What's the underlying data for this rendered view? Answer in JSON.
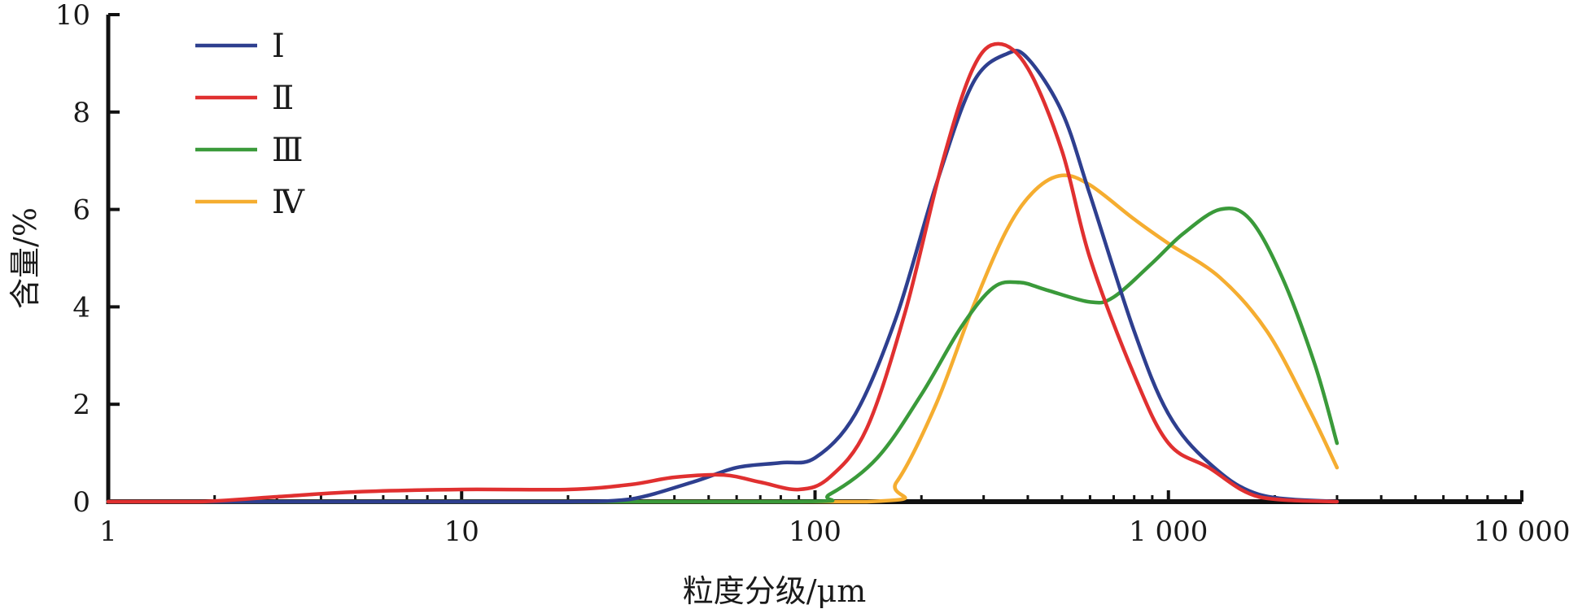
{
  "chart_data": {
    "type": "line",
    "xlabel": "粒度分级/μm",
    "ylabel": "含量/%",
    "x_scale": "log",
    "xlim": [
      1,
      10000
    ],
    "ylim": [
      0,
      10
    ],
    "x_ticks": [
      {
        "value": 1,
        "label": "1"
      },
      {
        "value": 10,
        "label": "10"
      },
      {
        "value": 100,
        "label": "100"
      },
      {
        "value": 1000,
        "label": "1 000"
      },
      {
        "value": 10000,
        "label": "10 000"
      }
    ],
    "y_ticks": [
      {
        "value": 0,
        "label": "0"
      },
      {
        "value": 2,
        "label": "2"
      },
      {
        "value": 4,
        "label": "4"
      },
      {
        "value": 6,
        "label": "6"
      },
      {
        "value": 8,
        "label": "8"
      },
      {
        "value": 10,
        "label": "10"
      }
    ],
    "legend_position": "top-left",
    "grid": false,
    "series": [
      {
        "name": "Ⅰ",
        "color": "#2e3f8f",
        "points": [
          [
            1,
            0
          ],
          [
            10,
            0
          ],
          [
            20,
            0
          ],
          [
            30,
            0.05
          ],
          [
            45,
            0.4
          ],
          [
            60,
            0.7
          ],
          [
            80,
            0.8
          ],
          [
            100,
            0.9
          ],
          [
            130,
            1.8
          ],
          [
            170,
            3.8
          ],
          [
            220,
            6.5
          ],
          [
            280,
            8.6
          ],
          [
            350,
            9.2
          ],
          [
            400,
            9.1
          ],
          [
            500,
            8.0
          ],
          [
            600,
            6.3
          ],
          [
            800,
            3.5
          ],
          [
            1000,
            1.8
          ],
          [
            1300,
            0.8
          ],
          [
            1800,
            0.15
          ],
          [
            3000,
            0
          ]
        ]
      },
      {
        "name": "Ⅱ",
        "color": "#e03030",
        "points": [
          [
            1,
            0
          ],
          [
            1.8,
            0
          ],
          [
            3,
            0.1
          ],
          [
            5,
            0.2
          ],
          [
            10,
            0.25
          ],
          [
            20,
            0.25
          ],
          [
            30,
            0.35
          ],
          [
            40,
            0.5
          ],
          [
            55,
            0.55
          ],
          [
            70,
            0.4
          ],
          [
            90,
            0.25
          ],
          [
            110,
            0.5
          ],
          [
            140,
            1.5
          ],
          [
            180,
            3.9
          ],
          [
            230,
            7.0
          ],
          [
            280,
            8.9
          ],
          [
            330,
            9.4
          ],
          [
            400,
            8.9
          ],
          [
            500,
            7.2
          ],
          [
            600,
            5.0
          ],
          [
            800,
            2.6
          ],
          [
            1000,
            1.2
          ],
          [
            1300,
            0.7
          ],
          [
            1800,
            0.1
          ],
          [
            3000,
            0
          ]
        ]
      },
      {
        "name": "Ⅲ",
        "color": "#3a9a3a",
        "points": [
          [
            1,
            0
          ],
          [
            10,
            0
          ],
          [
            90,
            0
          ],
          [
            110,
            0.15
          ],
          [
            150,
            0.9
          ],
          [
            200,
            2.2
          ],
          [
            260,
            3.6
          ],
          [
            320,
            4.4
          ],
          [
            380,
            4.5
          ],
          [
            450,
            4.35
          ],
          [
            600,
            4.1
          ],
          [
            700,
            4.2
          ],
          [
            900,
            4.9
          ],
          [
            1100,
            5.5
          ],
          [
            1400,
            6.0
          ],
          [
            1700,
            5.8
          ],
          [
            2100,
            4.6
          ],
          [
            2600,
            2.8
          ],
          [
            3000,
            1.2
          ]
        ]
      },
      {
        "name": "Ⅳ",
        "color": "#f5ad30",
        "points": [
          [
            1,
            0
          ],
          [
            10,
            0
          ],
          [
            140,
            0
          ],
          [
            170,
            0.4
          ],
          [
            220,
            2.0
          ],
          [
            280,
            4.0
          ],
          [
            350,
            5.6
          ],
          [
            420,
            6.4
          ],
          [
            500,
            6.7
          ],
          [
            600,
            6.5
          ],
          [
            800,
            5.8
          ],
          [
            1000,
            5.3
          ],
          [
            1400,
            4.6
          ],
          [
            1900,
            3.5
          ],
          [
            2500,
            1.9
          ],
          [
            3000,
            0.7
          ]
        ]
      }
    ]
  }
}
